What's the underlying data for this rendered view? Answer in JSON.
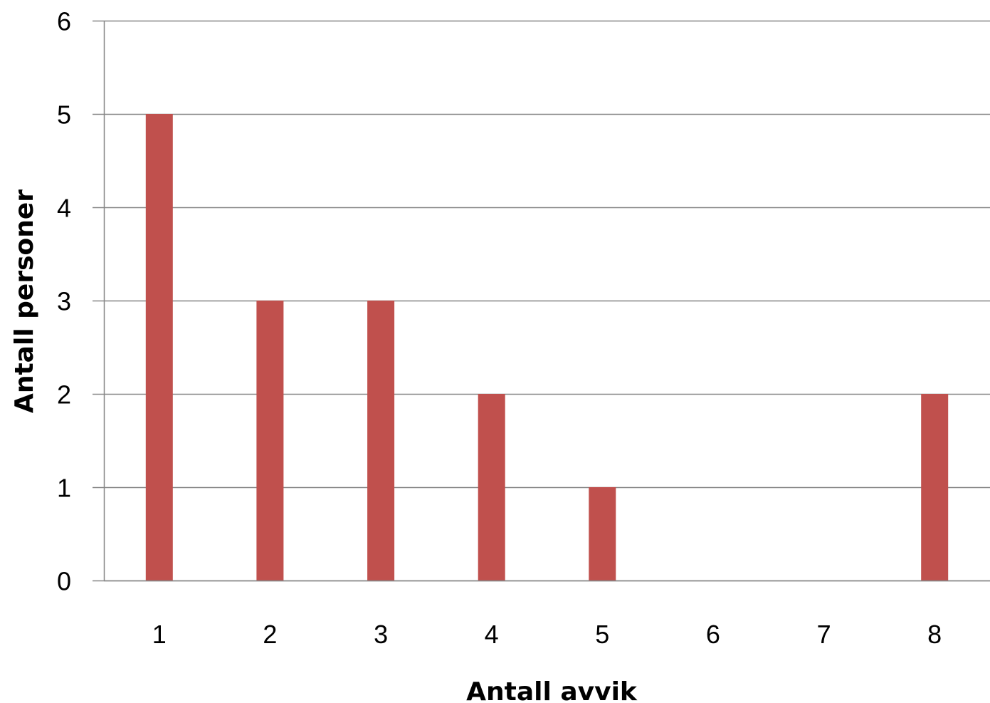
{
  "chart_data": {
    "type": "bar",
    "title": "",
    "xlabel": "Antall avvik",
    "ylabel": "Antall personer",
    "categories": [
      "1",
      "2",
      "3",
      "4",
      "5",
      "6",
      "7",
      "8"
    ],
    "values": [
      5,
      3,
      3,
      2,
      1,
      0,
      0,
      2
    ],
    "ylim": [
      0,
      6
    ],
    "yticks": [
      "0",
      "1",
      "2",
      "3",
      "4",
      "5",
      "6"
    ],
    "grid": true,
    "legend": "none",
    "bar_color": "#C0504D",
    "grid_color": "#868686"
  }
}
